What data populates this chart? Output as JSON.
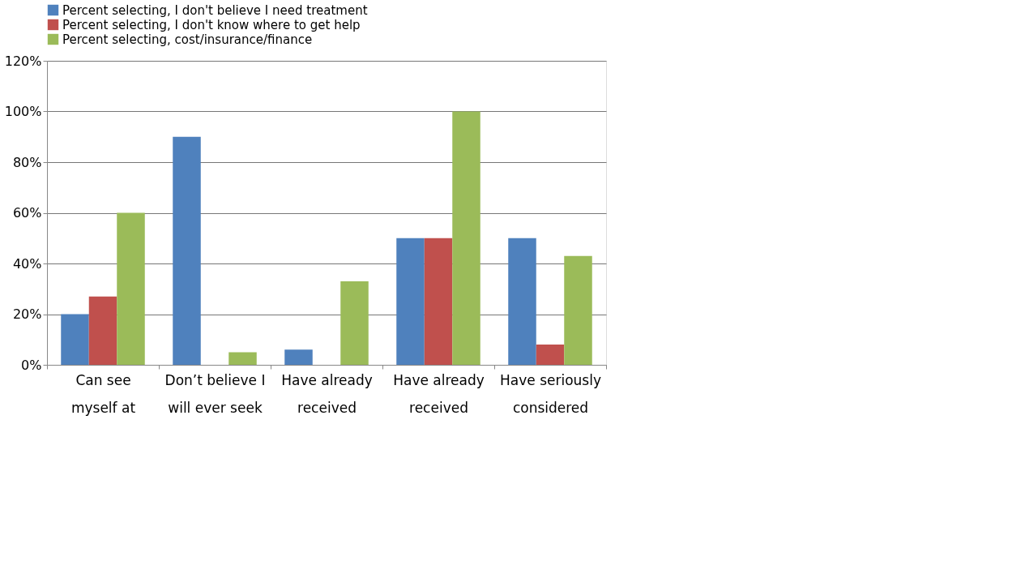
{
  "chart_data": {
    "type": "bar",
    "categories": [
      "Can see\nmyself at",
      "Don’t believe I\nwill ever seek",
      "Have already\nreceived",
      "Have already\nreceived",
      "Have seriously\nconsidered"
    ],
    "series": [
      {
        "name": "Percent selecting, I don't believe I need treatment",
        "color": "#4f81bd",
        "values": [
          20,
          90,
          6,
          50,
          50
        ]
      },
      {
        "name": "Percent selecting, I don't know where to get help",
        "color": "#c0504d",
        "values": [
          27,
          0,
          0,
          50,
          8
        ]
      },
      {
        "name": "Percent selecting, cost/insurance/finance",
        "color": "#9bbb59",
        "values": [
          60,
          5,
          33,
          100,
          43
        ]
      }
    ],
    "ylim": [
      0,
      120
    ],
    "yticks": [
      {
        "value": 0,
        "label": "0%"
      },
      {
        "value": 20,
        "label": "20%"
      },
      {
        "value": 40,
        "label": "40%"
      },
      {
        "value": 60,
        "label": "60%"
      },
      {
        "value": 80,
        "label": "80%"
      },
      {
        "value": 100,
        "label": "100%"
      },
      {
        "value": 120,
        "label": "120%"
      }
    ],
    "grid": "y",
    "legend": "top"
  }
}
